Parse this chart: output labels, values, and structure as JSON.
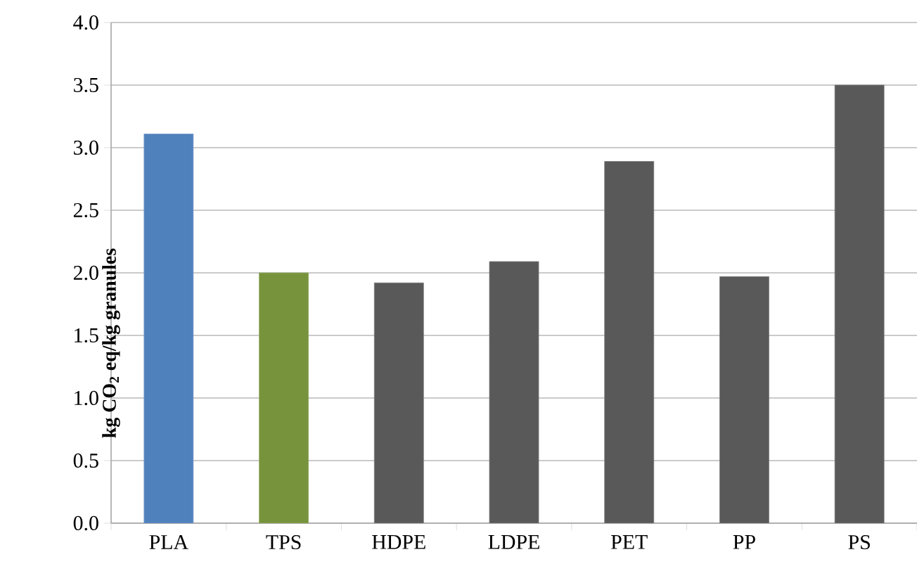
{
  "chart_data": {
    "type": "bar",
    "ylabel": "kg CO$_{2}$ eq/kg granules",
    "categories": [
      "PLA",
      "TPS",
      "HDPE",
      "LDPE",
      "PET",
      "PP",
      "PS"
    ],
    "values": [
      3.11,
      2.0,
      1.92,
      2.09,
      2.89,
      1.97,
      3.5
    ],
    "colors": [
      "#4f81bd",
      "#77933c",
      "#595959",
      "#595959",
      "#595959",
      "#595959",
      "#595959"
    ],
    "ylim": [
      0,
      4.0
    ],
    "yticks": [
      {
        "value": 0,
        "label": "0.0"
      },
      {
        "value": 0.5,
        "label": "0.5"
      },
      {
        "value": 1.0,
        "label": "1.0"
      },
      {
        "value": 1.5,
        "label": "1.5"
      },
      {
        "value": 2.0,
        "label": "2.0"
      },
      {
        "value": 2.5,
        "label": "2.5"
      },
      {
        "value": 3.0,
        "label": "3.0"
      },
      {
        "value": 3.5,
        "label": "3.5"
      },
      {
        "value": 4.0,
        "label": "4.0"
      }
    ],
    "grid": "y"
  }
}
